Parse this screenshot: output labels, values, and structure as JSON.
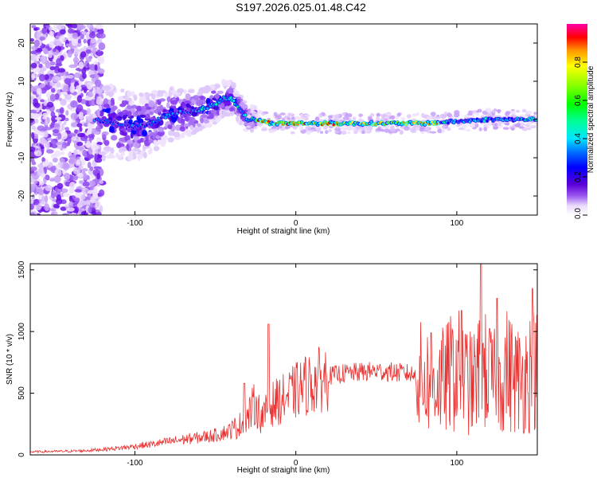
{
  "title": "S197.2026.025.01.48.C42",
  "chart_data": [
    {
      "type": "heatmap",
      "xlabel": "Height of straight line (km)",
      "ylabel": "Frequency (Hz)",
      "xlim": [
        -165,
        150
      ],
      "ylim": [
        -25,
        25
      ],
      "xticks": [
        -100,
        0,
        100
      ],
      "yticks": [
        -20,
        -10,
        0,
        10,
        20
      ],
      "colorbar": {
        "label": "Normalized spectral amplitude",
        "range": [
          0,
          1
        ],
        "ticks": [
          0.0,
          0.2,
          0.4,
          0.6,
          0.8
        ]
      },
      "ridge": {
        "x": [
          -125,
          -110,
          -100,
          -90,
          -80,
          -70,
          -60,
          -50,
          -45,
          -40,
          -35,
          -30,
          -25,
          -20,
          -15,
          -10,
          0,
          10,
          20,
          40,
          60,
          80,
          100,
          120,
          140,
          150
        ],
        "y": [
          0,
          -1,
          -2,
          -1,
          1,
          2,
          2.5,
          4,
          5.5,
          5.5,
          3,
          0,
          0,
          -0.5,
          -1,
          -1,
          -1,
          -1,
          -1,
          -1,
          -1,
          -1,
          -0.5,
          0,
          0,
          0
        ]
      }
    },
    {
      "type": "line",
      "xlabel": "Height of straight line (km)",
      "ylabel": "SNR (10 * v/v)",
      "xlim": [
        -165,
        150
      ],
      "ylim": [
        0,
        1550
      ],
      "xticks": [
        -100,
        0,
        100
      ],
      "yticks": [
        0,
        500,
        1000,
        1500
      ],
      "series": [
        {
          "name": "SNR",
          "color": "#e8302f",
          "x": [
            -165,
            -150,
            -140,
            -130,
            -120,
            -110,
            -100,
            -90,
            -80,
            -70,
            -60,
            -50,
            -45,
            -40,
            -35,
            -30,
            -27,
            -25,
            -22,
            -20,
            -18,
            -15,
            -12,
            -10,
            -5,
            0,
            5,
            10,
            15,
            20,
            25,
            30,
            40,
            50,
            60,
            70,
            75,
            80,
            85,
            90,
            95,
            100,
            105,
            110,
            115,
            120,
            125,
            130,
            135,
            140,
            145,
            150
          ],
          "y": [
            25,
            28,
            30,
            35,
            45,
            55,
            70,
            85,
            105,
            125,
            140,
            160,
            180,
            200,
            240,
            300,
            380,
            420,
            320,
            300,
            360,
            410,
            430,
            440,
            470,
            520,
            560,
            580,
            610,
            640,
            650,
            660,
            670,
            680,
            670,
            660,
            640,
            600,
            620,
            580,
            640,
            700,
            620,
            560,
            700,
            640,
            560,
            700,
            640,
            600,
            680,
            700
          ],
          "spikes": [
            {
              "x": -32,
              "y": 580
            },
            {
              "x": -17,
              "y": 1060
            },
            {
              "x": 84,
              "y": 990
            },
            {
              "x": 103,
              "y": 1170
            },
            {
              "x": 115,
              "y": 1560
            },
            {
              "x": 125,
              "y": 1270
            },
            {
              "x": 147,
              "y": 1350
            }
          ]
        }
      ]
    }
  ]
}
